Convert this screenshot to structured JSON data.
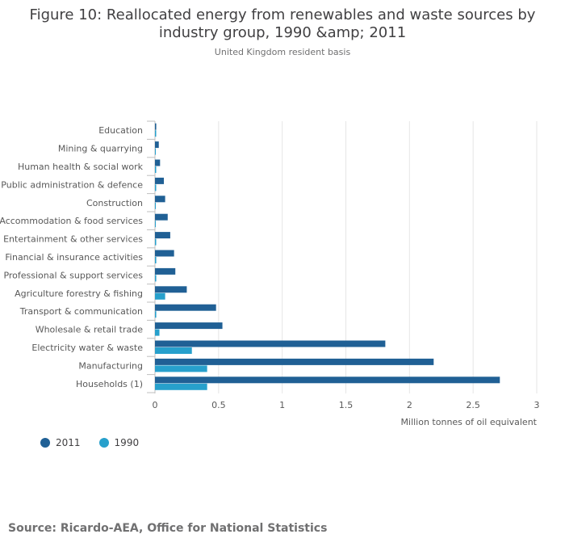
{
  "chart_data": {
    "type": "bar",
    "orientation": "horizontal",
    "title": "Figure 10: Reallocated energy from renewables and waste sources by industry group, 1990 &amp; 2011",
    "subtitle": "United Kingdom resident basis",
    "xlabel": "Million tonnes of oil equivalent",
    "ylabel": "",
    "xlim": [
      0,
      3
    ],
    "xticks": [
      "0",
      "0.5",
      "1",
      "1.5",
      "2",
      "2.5",
      "3"
    ],
    "xtick_values": [
      0,
      0.5,
      1,
      1.5,
      2,
      2.5,
      3
    ],
    "grid": true,
    "legend_position": "bottom-left",
    "categories": [
      "Education",
      "Mining & quarrying",
      "Human health & social work",
      "Public administration & defence",
      "Construction",
      "Accommodation & food services",
      "Entertainment & other services",
      "Financial & insurance activities",
      "Professional & support services",
      "Agriculture forestry & fishing",
      "Transport & communication",
      "Wholesale & retail trade",
      "Electricity water & waste",
      "Manufacturing",
      "Households (1)"
    ],
    "series": [
      {
        "name": "2011",
        "color": "#206095",
        "values": [
          0.01,
          0.03,
          0.04,
          0.07,
          0.08,
          0.1,
          0.12,
          0.15,
          0.16,
          0.25,
          0.48,
          0.53,
          1.81,
          2.19,
          2.71
        ]
      },
      {
        "name": "1990",
        "color": "#27A0CC",
        "values": [
          0.005,
          0.0,
          0.005,
          0.005,
          0.0,
          0.0,
          0.005,
          0.01,
          0.01,
          0.08,
          0.01,
          0.035,
          0.29,
          0.41,
          0.41
        ]
      }
    ]
  },
  "source": "Source: Ricardo-AEA, Office for National Statistics"
}
